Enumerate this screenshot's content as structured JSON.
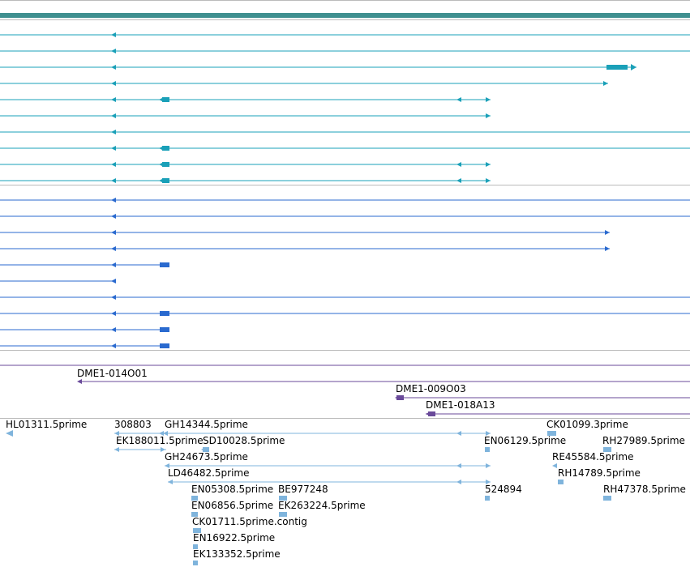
{
  "colors": {
    "background": "#ffffff",
    "ruler": "#3f8f8f",
    "divider": "#bbbbbb",
    "track_group_1": "#1aa0b8",
    "track_group_2": "#2a6acf",
    "clone_track": "#6a4a9a",
    "est_track": "#7fb4dc"
  },
  "icons": {
    "feature_start": "left-arrow-icon",
    "feature_end": "right-arrow-icon",
    "exon_block": "exon-block-icon"
  },
  "clones": {
    "items": [
      {
        "label": "DME1-014O01"
      },
      {
        "label": "DME1-009O03"
      },
      {
        "label": "DME1-018A13"
      }
    ]
  },
  "ests": {
    "labels": [
      "HL01311.5prime",
      "308803",
      "GH14344.5prime",
      "CK01099.3prime",
      "EK188011.5prime",
      "SD10028.5prime",
      "EN06129.5prime",
      "RH27989.5prime",
      "GH24673.5prime",
      "RE45584.5prime",
      "LD46482.5prime",
      "RH14789.5prime",
      "EN05308.5prime",
      "BE977248",
      "524894",
      "RH47378.5prime",
      "EN06856.5prime",
      "EK263224.5prime",
      "CK01711.5prime.contig",
      "EN16922.5prime",
      "EK133352.5prime"
    ]
  }
}
